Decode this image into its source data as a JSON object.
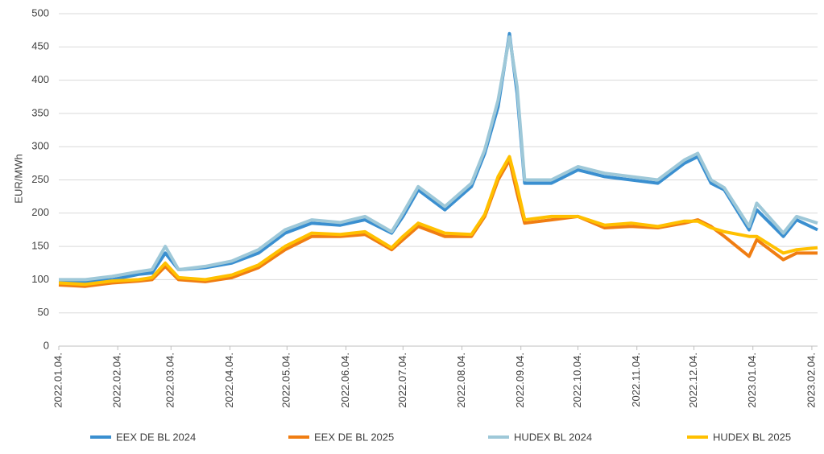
{
  "chart_data": {
    "type": "line",
    "y_label": "EUR/MWh",
    "x": [
      "2022-01-04",
      "2022-01-18",
      "2022-02-01",
      "2022-02-15",
      "2022-02-22",
      "2022-03-01",
      "2022-03-08",
      "2022-03-22",
      "2022-04-05",
      "2022-04-19",
      "2022-05-03",
      "2022-05-17",
      "2022-06-01",
      "2022-06-14",
      "2022-06-28",
      "2022-07-04",
      "2022-07-12",
      "2022-07-26",
      "2022-08-09",
      "2022-08-16",
      "2022-08-23",
      "2022-08-29",
      "2022-09-02",
      "2022-09-06",
      "2022-09-20",
      "2022-10-04",
      "2022-10-18",
      "2022-11-01",
      "2022-11-15",
      "2022-11-29",
      "2022-12-06",
      "2022-12-13",
      "2022-12-20",
      "2023-01-02",
      "2023-01-06",
      "2023-01-20",
      "2023-01-27",
      "2023-02-07"
    ],
    "series": [
      {
        "name": "EEX DE BL 2024",
        "color": "#3a8fd0",
        "values": [
          98,
          97,
          100,
          108,
          110,
          140,
          115,
          118,
          125,
          140,
          170,
          185,
          182,
          190,
          170,
          195,
          235,
          205,
          240,
          290,
          360,
          470,
          380,
          245,
          245,
          265,
          255,
          250,
          245,
          275,
          285,
          245,
          235,
          175,
          205,
          165,
          190,
          175
        ]
      },
      {
        "name": "EEX DE BL 2025",
        "color": "#f07d12",
        "values": [
          92,
          90,
          95,
          98,
          100,
          120,
          100,
          97,
          103,
          118,
          145,
          165,
          165,
          168,
          145,
          160,
          180,
          165,
          165,
          195,
          250,
          280,
          230,
          185,
          190,
          195,
          178,
          180,
          178,
          185,
          190,
          180,
          165,
          135,
          160,
          130,
          140,
          140
        ]
      },
      {
        "name": "HUDEX BL 2024",
        "color": "#9ec8d8",
        "values": [
          100,
          100,
          105,
          112,
          115,
          150,
          115,
          120,
          128,
          145,
          175,
          190,
          186,
          195,
          172,
          200,
          240,
          210,
          245,
          295,
          370,
          465,
          390,
          250,
          250,
          270,
          260,
          255,
          250,
          280,
          290,
          250,
          238,
          180,
          215,
          170,
          195,
          185
        ]
      },
      {
        "name": "HUDEX BL 2025",
        "color": "#ffc000",
        "values": [
          95,
          93,
          98,
          100,
          103,
          125,
          103,
          100,
          107,
          122,
          150,
          170,
          168,
          172,
          148,
          165,
          185,
          170,
          168,
          198,
          255,
          285,
          240,
          190,
          195,
          195,
          182,
          185,
          180,
          188,
          188,
          178,
          172,
          165,
          165,
          140,
          145,
          148
        ]
      }
    ],
    "xlim": [
      "2022-01-04",
      "2023-02-07"
    ],
    "xticks": [
      {
        "value": "2022-01-04",
        "label": "2022.01.04."
      },
      {
        "value": "2022-02-04",
        "label": "2022.02.04."
      },
      {
        "value": "2022-03-04",
        "label": "2022.03.04."
      },
      {
        "value": "2022-04-04",
        "label": "2022.04.04."
      },
      {
        "value": "2022-05-04",
        "label": "2022.05.04."
      },
      {
        "value": "2022-06-04",
        "label": "2022.06.04."
      },
      {
        "value": "2022-07-04",
        "label": "2022.07.04."
      },
      {
        "value": "2022-08-04",
        "label": "2022.08.04."
      },
      {
        "value": "2022-09-04",
        "label": "2022.09.04."
      },
      {
        "value": "2022-10-04",
        "label": "2022.10.04."
      },
      {
        "value": "2022-11-04",
        "label": "2022.11.04."
      },
      {
        "value": "2022-12-04",
        "label": "2022.12.04."
      },
      {
        "value": "2023-01-04",
        "label": "2023.01.04."
      },
      {
        "value": "2023-02-04",
        "label": "2023.02.04."
      }
    ],
    "ylim": [
      0,
      500
    ],
    "yticks": [
      0,
      50,
      100,
      150,
      200,
      250,
      300,
      350,
      400,
      450,
      500
    ],
    "grid": true,
    "legend": "bottom"
  }
}
